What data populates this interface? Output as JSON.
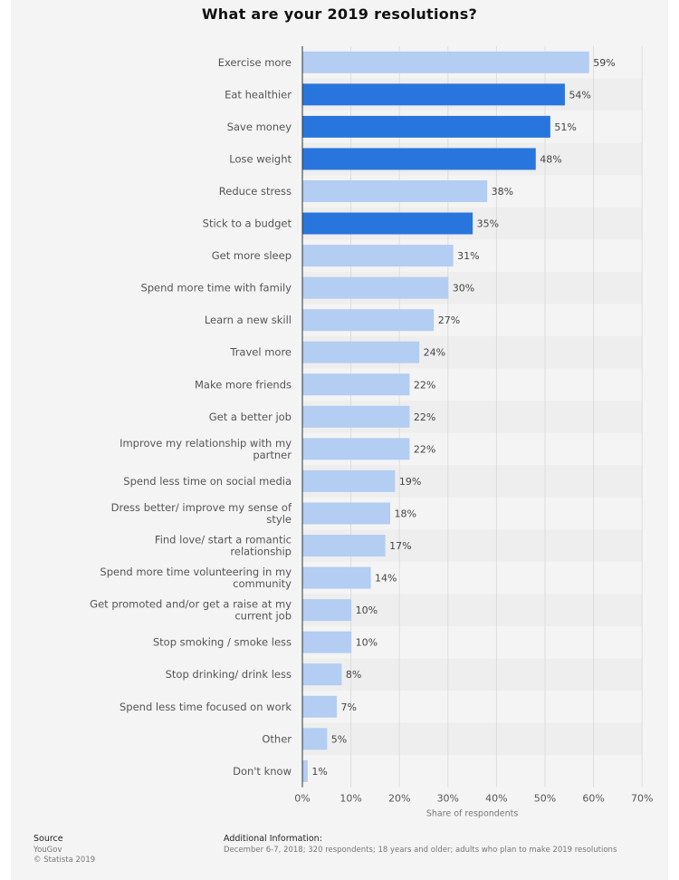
{
  "title": "What are your 2019 resolutions?",
  "chart_data": {
    "type": "bar",
    "orientation": "horizontal",
    "title": "What are your 2019 resolutions?",
    "xlabel": "Share of respondents",
    "ylabel": "",
    "xlim": [
      0,
      70
    ],
    "xticks": [
      "0%",
      "10%",
      "20%",
      "30%",
      "40%",
      "50%",
      "60%",
      "70%"
    ],
    "categories": [
      "Exercise more",
      "Eat healthier",
      "Save money",
      "Lose weight",
      "Reduce stress",
      "Stick to a budget",
      "Get more sleep",
      "Spend more time with family",
      "Learn a new skill",
      "Travel more",
      "Make more friends",
      "Get a better job",
      "Improve my relationship with my partner",
      "Spend less time on social media",
      "Dress better/ improve my sense of style",
      "Find love/ start a romantic relationship",
      "Spend more time volunteering in my community",
      "Get promoted and/or get a raise at my current job",
      "Stop smoking / smoke less",
      "Stop drinking/ drink less",
      "Spend less time focused on work",
      "Other",
      "Don't know"
    ],
    "values": [
      59,
      54,
      51,
      48,
      38,
      35,
      31,
      30,
      27,
      24,
      22,
      22,
      22,
      19,
      18,
      17,
      14,
      10,
      10,
      8,
      7,
      5,
      1
    ],
    "value_labels": [
      "59%",
      "54%",
      "51%",
      "48%",
      "38%",
      "35%",
      "31%",
      "30%",
      "27%",
      "24%",
      "22%",
      "22%",
      "22%",
      "19%",
      "18%",
      "17%",
      "14%",
      "10%",
      "10%",
      "8%",
      "7%",
      "5%",
      "1%"
    ],
    "highlighted": [
      false,
      true,
      true,
      true,
      false,
      true,
      false,
      false,
      false,
      false,
      false,
      false,
      false,
      false,
      false,
      false,
      false,
      false,
      false,
      false,
      false,
      false,
      false
    ],
    "colors": {
      "normal": "#b3cdf3",
      "highlight": "#2876dd",
      "axis": "#333333",
      "grid": "#dddddd"
    },
    "grid": true
  },
  "footer": {
    "source_label": "Source",
    "source_lines": [
      "YouGov",
      "© Statista 2019"
    ],
    "info_label": "Additional Information:",
    "info_text": "December 6-7, 2018; 320 respondents; 18 years and older; adults who plan to make 2019 resolutions"
  }
}
